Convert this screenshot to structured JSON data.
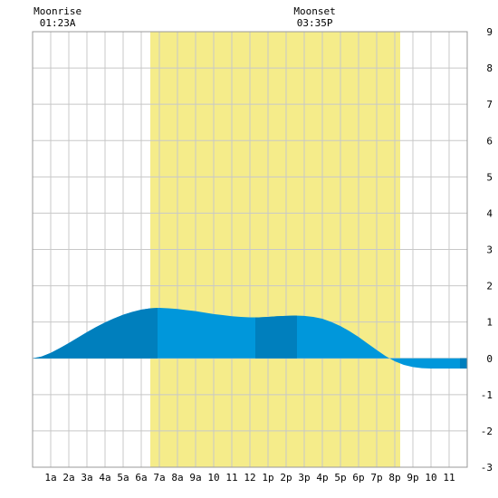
{
  "chart_data": {
    "type": "area",
    "title": "",
    "xlabel": "",
    "ylabel": "",
    "x_range_hours": [
      0,
      24
    ],
    "ylim": [
      -3,
      9
    ],
    "y_ticks": [
      "-3",
      "-2",
      "-1",
      "0",
      "1",
      "2",
      "3",
      "4",
      "5",
      "6",
      "7",
      "8",
      "9"
    ],
    "x_tick_labels": [
      "1a",
      "2a",
      "3a",
      "4a",
      "5a",
      "6a",
      "7a",
      "8a",
      "9a",
      "10",
      "11",
      "12",
      "1p",
      "2p",
      "3p",
      "4p",
      "5p",
      "6p",
      "7p",
      "8p",
      "9p",
      "10",
      "11"
    ],
    "grid": true,
    "daylight_window_hours": [
      6.5,
      20.3
    ],
    "daylight_color": "#f5ec8a",
    "moon": {
      "rise_label": "Moonrise",
      "rise_time": "01:23A",
      "rise_hour": 1.38,
      "set_label": "Moonset",
      "set_time": "03:35P",
      "set_hour": 15.58
    },
    "series": [
      {
        "x": [
          0,
          0.5,
          1,
          1.5,
          2,
          2.5,
          3,
          3.5,
          4,
          4.5,
          5,
          5.5,
          6,
          6.5,
          7,
          7.5,
          8,
          8.5,
          9,
          9.5,
          10,
          10.5,
          11,
          11.5,
          12,
          12.5,
          13,
          13.5,
          14,
          14.5,
          15,
          15.5,
          16,
          16.5,
          17,
          17.5,
          18,
          18.5,
          19,
          19.5,
          20,
          20.5,
          21,
          21.5,
          22,
          22.5,
          23,
          23.5,
          24
        ],
        "values": [
          0.0,
          0.05,
          0.15,
          0.28,
          0.42,
          0.57,
          0.72,
          0.86,
          0.99,
          1.1,
          1.2,
          1.28,
          1.34,
          1.38,
          1.39,
          1.38,
          1.36,
          1.33,
          1.3,
          1.26,
          1.22,
          1.19,
          1.16,
          1.14,
          1.13,
          1.13,
          1.14,
          1.16,
          1.17,
          1.18,
          1.17,
          1.14,
          1.09,
          1.0,
          0.89,
          0.75,
          0.59,
          0.41,
          0.23,
          0.06,
          -0.08,
          -0.18,
          -0.24,
          -0.27,
          -0.28,
          -0.28,
          -0.28,
          -0.28,
          -0.28
        ]
      }
    ],
    "colors": {
      "tide_light": "#0097db",
      "tide_dark": "#007fbd",
      "grid": "#c8c8c8",
      "frame": "#999999"
    },
    "dark_bands_hours": [
      [
        0,
        6.9
      ],
      [
        12.3,
        14.6
      ],
      [
        23.6,
        24
      ]
    ]
  }
}
